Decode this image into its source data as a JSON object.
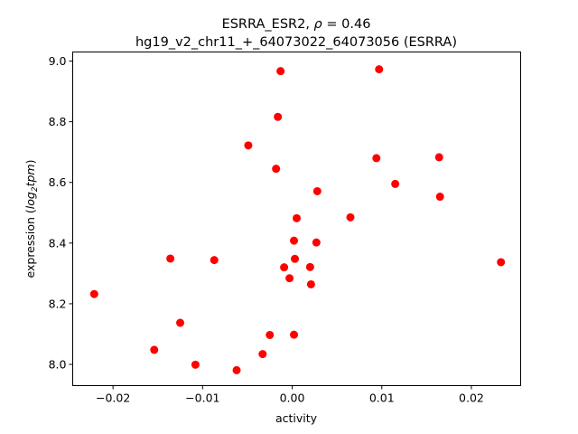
{
  "chart_data": {
    "type": "scatter",
    "title_line1_prefix": "ESRRA_ESR2, ",
    "title_rho_symbol": "ρ",
    "title_rho_value": " = 0.46",
    "title_line2": "hg19_v2_chr11_+_64073022_64073056 (ESRRA)",
    "xlabel": "activity",
    "ylabel_prefix": "expression (",
    "ylabel_log": "log",
    "ylabel_sub": "2",
    "ylabel_tpm": "tpm",
    "ylabel_suffix": ")",
    "xlim": [
      -0.0245,
      0.0255
    ],
    "ylim": [
      7.93,
      9.03
    ],
    "xticks": [
      -0.02,
      -0.01,
      0.0,
      0.01,
      0.02
    ],
    "xtick_labels": [
      "−0.02",
      "−0.01",
      "0.00",
      "0.01",
      "0.02"
    ],
    "yticks": [
      8.0,
      8.2,
      8.4,
      8.6,
      8.8,
      9.0
    ],
    "ytick_labels": [
      "8.0",
      "8.2",
      "8.4",
      "8.6",
      "8.8",
      "9.0"
    ],
    "marker_color": "#ff0000",
    "grid": false,
    "points": [
      {
        "x": -0.0221,
        "y": 8.232
      },
      {
        "x": -0.0154,
        "y": 8.048
      },
      {
        "x": -0.0136,
        "y": 8.349
      },
      {
        "x": -0.0125,
        "y": 8.137
      },
      {
        "x": -0.0108,
        "y": 7.999
      },
      {
        "x": -0.0087,
        "y": 8.344
      },
      {
        "x": -0.0062,
        "y": 7.981
      },
      {
        "x": -0.0049,
        "y": 8.722
      },
      {
        "x": -0.0033,
        "y": 8.034
      },
      {
        "x": -0.0025,
        "y": 8.097
      },
      {
        "x": -0.0018,
        "y": 8.645
      },
      {
        "x": -0.0016,
        "y": 8.816
      },
      {
        "x": -0.0013,
        "y": 8.967
      },
      {
        "x": -0.0009,
        "y": 8.32
      },
      {
        "x": -0.0003,
        "y": 8.284
      },
      {
        "x": 0.0002,
        "y": 8.098
      },
      {
        "x": 0.0002,
        "y": 8.408
      },
      {
        "x": 0.0003,
        "y": 8.348
      },
      {
        "x": 0.0005,
        "y": 8.482
      },
      {
        "x": 0.002,
        "y": 8.321
      },
      {
        "x": 0.0021,
        "y": 8.264
      },
      {
        "x": 0.0027,
        "y": 8.402
      },
      {
        "x": 0.0028,
        "y": 8.571
      },
      {
        "x": 0.0065,
        "y": 8.485
      },
      {
        "x": 0.0094,
        "y": 8.68
      },
      {
        "x": 0.0097,
        "y": 8.973
      },
      {
        "x": 0.0115,
        "y": 8.595
      },
      {
        "x": 0.0164,
        "y": 8.683
      },
      {
        "x": 0.0165,
        "y": 8.553
      },
      {
        "x": 0.0233,
        "y": 8.337
      }
    ]
  }
}
